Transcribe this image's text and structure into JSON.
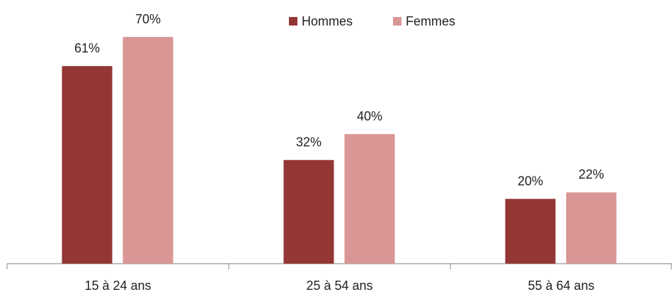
{
  "chart_data": {
    "type": "bar",
    "categories": [
      "15 à 24 ans",
      "25 à 54 ans",
      "55 à 64 ans"
    ],
    "series": [
      {
        "name": "Hommes",
        "color": "#943634",
        "values": [
          61,
          32,
          20
        ],
        "value_labels": [
          "61%",
          "32%",
          "20%"
        ]
      },
      {
        "name": "Femmes",
        "color": "#d99694",
        "values": [
          70,
          40,
          22
        ],
        "value_labels": [
          "70%",
          "40%",
          "22%"
        ]
      }
    ],
    "legend": "top"
  }
}
